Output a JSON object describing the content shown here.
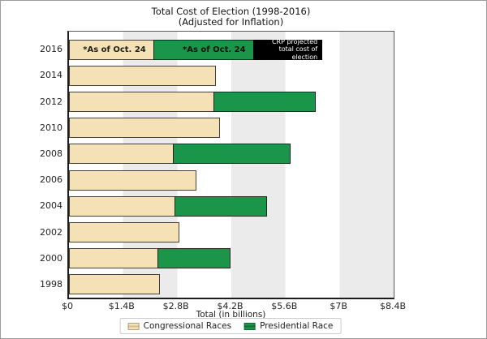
{
  "figure": {
    "title_line1": "Total Cost of Election (1998-2016)",
    "title_line2": "(Adjusted for Inflation)",
    "xlabel": "Total (in billions)"
  },
  "chart_data": {
    "type": "bar",
    "orientation": "horizontal",
    "stacked": true,
    "title": "Total Cost of Election (1998-2016)",
    "subtitle": "(Adjusted for Inflation)",
    "xlabel": "Total (in billions)",
    "xlim": [
      0,
      8.4
    ],
    "x_ticks": [
      "$0",
      "$1.4B",
      "$2.8B",
      "$4.2B",
      "$5.6B",
      "$7B",
      "$8.4B"
    ],
    "band_interval_billions": 1.4,
    "band_colors": [
      "#ffffff",
      "#ebebeb"
    ],
    "categories": [
      "2016",
      "2014",
      "2012",
      "2010",
      "2008",
      "2006",
      "2004",
      "2002",
      "2000",
      "1998"
    ],
    "series": [
      {
        "name": "Congressional Races",
        "color": "#f4e1b6",
        "values": [
          2.2,
          3.8,
          3.75,
          3.9,
          2.7,
          3.3,
          2.75,
          2.85,
          2.3,
          2.35
        ]
      },
      {
        "name": "Presidential Race",
        "color": "#1b9549",
        "values": [
          2.6,
          null,
          2.65,
          null,
          3.05,
          null,
          2.4,
          null,
          1.9,
          null
        ]
      },
      {
        "name": "CRP projected total cost of election (remainder)",
        "color": "#000000",
        "values": [
          1.8,
          null,
          null,
          null,
          null,
          null,
          null,
          null,
          null,
          null
        ]
      }
    ],
    "totals_note": "2016 projected total ≈ $6.6B; as of Oct. 24: congressional $2.2B, presidential $2.6B",
    "segment_labels": {
      "2016": [
        "*As of Oct. 24",
        "*As of Oct. 24",
        "CRP projected\ntotal cost of election"
      ]
    },
    "legend": {
      "position": "bottom",
      "entries": [
        {
          "label": "Congressional Races",
          "color": "#f4e1b6"
        },
        {
          "label": "Presidential Race",
          "color": "#1b9549"
        }
      ]
    }
  }
}
